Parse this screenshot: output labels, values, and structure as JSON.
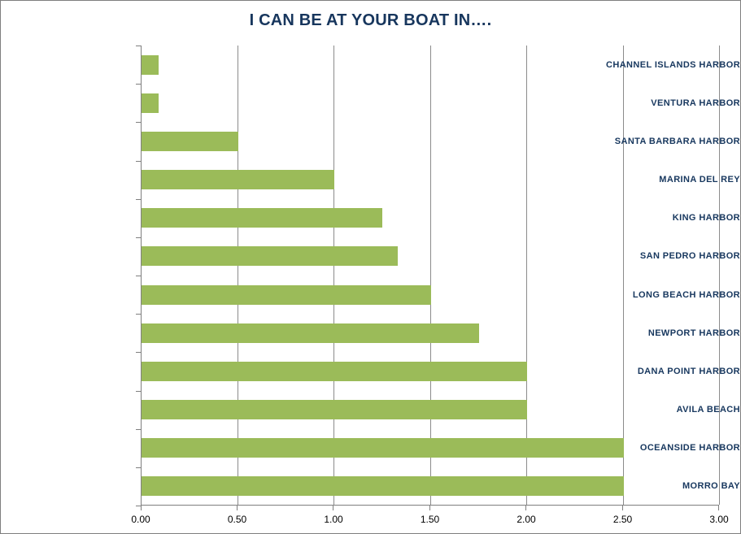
{
  "chart": {
    "title": "I CAN BE AT YOUR BOAT IN….",
    "colors": {
      "bar_fill": "#9BBB59",
      "title_text": "#17365D",
      "category_text": "#17375E",
      "tick_label_text": "#000000",
      "axis_line": "#7F7F7F",
      "gridline": "#8B8B8B",
      "border": "#7F7F7F",
      "background": "#FFFFFF"
    }
  },
  "chart_data": {
    "type": "bar",
    "orientation": "horizontal",
    "title": "I CAN BE AT YOUR BOAT IN….",
    "categories": [
      "CHANNEL ISLANDS HARBOR",
      "VENTURA HARBOR",
      "SANTA BARBARA HARBOR",
      "MARINA DEL REY",
      "KING HARBOR",
      "SAN PEDRO HARBOR",
      "LONG BEACH HARBOR",
      "NEWPORT HARBOR",
      "DANA POINT HARBOR",
      "AVILA BEACH",
      "OCEANSIDE HARBOR",
      "MORRO BAY"
    ],
    "values": [
      0.09,
      0.09,
      0.5,
      1.0,
      1.25,
      1.33,
      1.5,
      1.75,
      2.0,
      2.0,
      2.5,
      2.5
    ],
    "xlabel": "",
    "ylabel": "",
    "xlim": [
      0,
      3
    ],
    "xtick_labels": [
      "0.00",
      "0.50",
      "1.00",
      "1.50",
      "2.00",
      "2.50",
      "3.00"
    ],
    "grid": true,
    "legend": false
  }
}
